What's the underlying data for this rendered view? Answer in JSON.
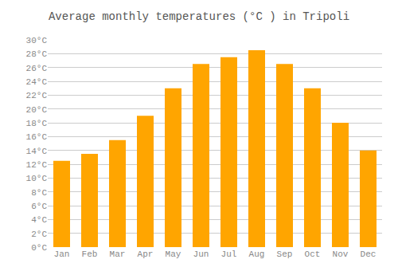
{
  "chart_data": {
    "type": "bar",
    "title": "Average monthly temperatures (°C ) in Tripoli",
    "categories": [
      "Jan",
      "Feb",
      "Mar",
      "Apr",
      "May",
      "Jun",
      "Jul",
      "Aug",
      "Sep",
      "Oct",
      "Nov",
      "Dec"
    ],
    "values": [
      12.5,
      13.5,
      15.5,
      19.0,
      23.0,
      26.5,
      27.5,
      28.5,
      26.5,
      23.0,
      18.0,
      14.0
    ],
    "color": "#FFA500",
    "ylim": [
      0,
      30
    ],
    "yticks": [
      {
        "value": 0,
        "label": "0°C"
      },
      {
        "value": 2,
        "label": "2°C"
      },
      {
        "value": 4,
        "label": "4°C"
      },
      {
        "value": 6,
        "label": "6°C"
      },
      {
        "value": 8,
        "label": "8°C"
      },
      {
        "value": 10,
        "label": "10°C"
      },
      {
        "value": 12,
        "label": "12°C"
      },
      {
        "value": 14,
        "label": "14°C"
      },
      {
        "value": 16,
        "label": "16°C"
      },
      {
        "value": 18,
        "label": "18°C"
      },
      {
        "value": 20,
        "label": "20°C"
      },
      {
        "value": 22,
        "label": "22°C"
      },
      {
        "value": 24,
        "label": "24°C"
      },
      {
        "value": 26,
        "label": "26°C"
      },
      {
        "value": 28,
        "label": "28°C"
      },
      {
        "value": 30,
        "label": "30°C"
      }
    ],
    "grid": true
  }
}
